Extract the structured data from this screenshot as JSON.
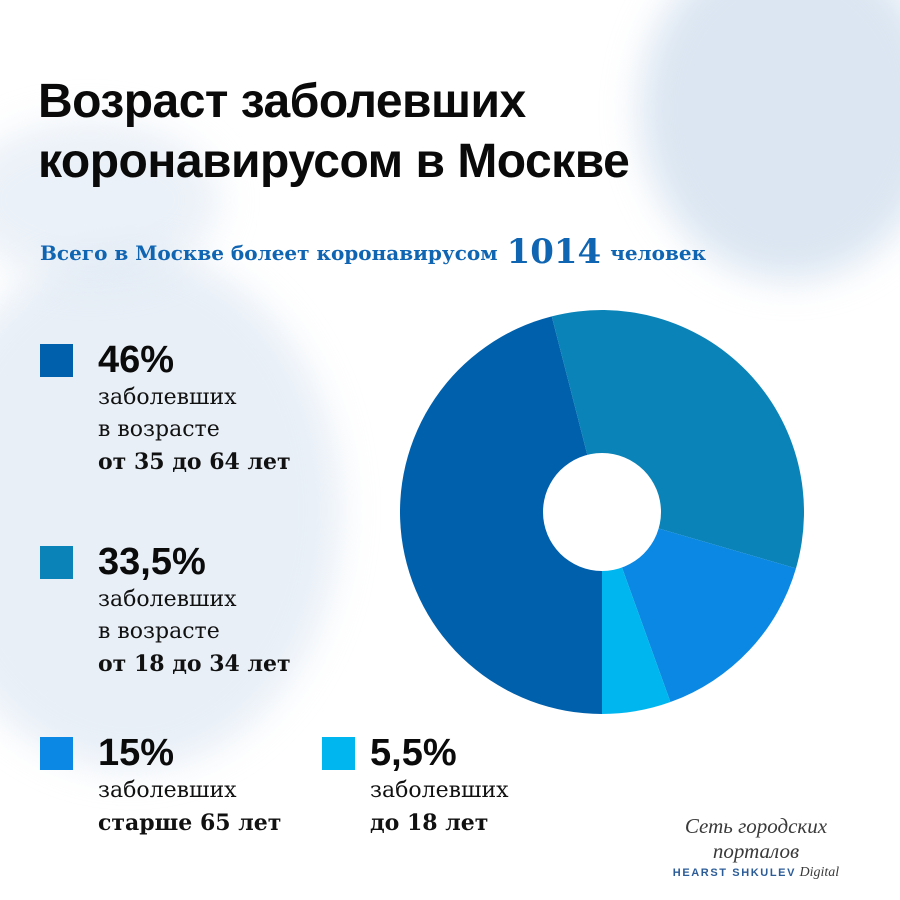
{
  "header": {
    "title_line1": "Возраст заболевших",
    "title_line2": "коронавирусом в Москве",
    "subtitle_prefix": "Всего в Москве болеет коронавирусом",
    "subtitle_number": "1014",
    "subtitle_suffix": "человек"
  },
  "legend": [
    {
      "percent": "46%",
      "line1": "заболевших",
      "line2": "в возрасте",
      "line3": "от 35 до 64 лет",
      "color": "#0060ac"
    },
    {
      "percent": "33,5%",
      "line1": "заболевших",
      "line2": "в возрасте",
      "line3": "от 18 до 34 лет",
      "color": "#0a84b8"
    },
    {
      "percent": "15%",
      "line1": "заболевших",
      "line2": "старше 65 лет",
      "color": "#0a88e3"
    },
    {
      "percent": "5,5%",
      "line1": "заболевших",
      "line2": "до 18 лет",
      "color": "#00b6ef"
    }
  ],
  "brand": {
    "line1": "Сеть городских порталов",
    "caps": "HEARST SHKULEV",
    "italic": "Digital"
  },
  "chart_data": {
    "type": "pie",
    "title": "Возраст заболевших коронавирусом в Москве",
    "subtitle": "Всего в Москве болеет коронавирусом 1014 человек",
    "donut": true,
    "categories": [
      "от 35 до 64 лет",
      "от 18 до 34 лет",
      "старше 65 лет",
      "до 18 лет"
    ],
    "values": [
      46,
      33.5,
      15,
      5.5
    ],
    "colors": [
      "#0060ac",
      "#0a84b8",
      "#0a88e3",
      "#00b6ef"
    ],
    "units": "%",
    "total_cases": 1014,
    "legend_position": "left"
  }
}
